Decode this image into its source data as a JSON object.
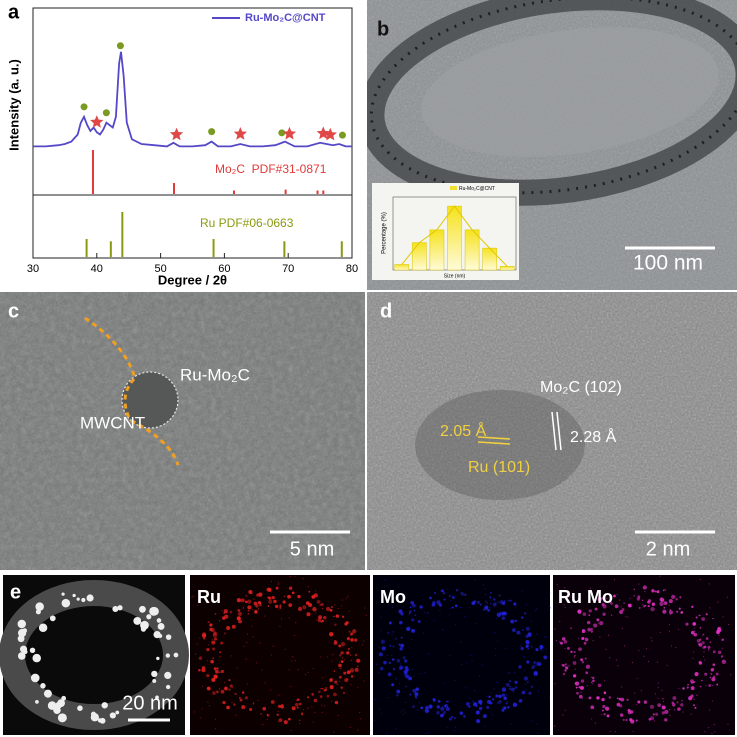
{
  "chart_data": [
    {
      "type": "line",
      "label": "a",
      "xlabel": "Degree / 2θ",
      "ylabel": "Intensity (a. u.)",
      "xlim": [
        30,
        80
      ],
      "xticks": [
        30,
        40,
        50,
        60,
        70,
        80
      ],
      "ylim": [
        0,
        110
      ],
      "legend": "upper right",
      "x": [
        30,
        32,
        34,
        35,
        36,
        37,
        37.5,
        38,
        38.5,
        39,
        39.5,
        40,
        40.5,
        41,
        41.5,
        42,
        42.5,
        43,
        43.5,
        43.8,
        44.2,
        44.7,
        45.5,
        47,
        49,
        51,
        52,
        53,
        55,
        57,
        58,
        59,
        61,
        62.5,
        64,
        66,
        68,
        69.5,
        71,
        73,
        75,
        76,
        77,
        78,
        79,
        80
      ],
      "series": [
        {
          "name": "Ru-Mo₂C@CNT",
          "color": "#5548c8",
          "values": [
            20,
            20,
            21,
            22,
            24,
            30,
            40,
            45,
            38,
            33,
            36,
            32,
            30,
            34,
            40,
            38,
            36,
            45,
            90,
            100,
            80,
            40,
            26,
            22,
            21,
            20,
            23,
            20,
            20,
            21,
            24,
            20,
            20,
            22,
            20,
            20,
            21,
            24,
            20,
            20,
            23,
            22,
            21,
            22,
            20,
            20
          ]
        }
      ],
      "markers": [
        {
          "shape": "circle",
          "color": "#7a9a20",
          "x": [
            38,
            41.5,
            43.7,
            58,
            69,
            78.5
          ]
        },
        {
          "shape": "star",
          "color": "#e04848",
          "x": [
            40,
            52.5,
            62.5,
            70.2,
            75.5,
            76.6
          ]
        }
      ],
      "references": [
        {
          "name": "Mo₂C  PDF#31-0871",
          "color": "#e03a3a",
          "x": [
            39.4,
            52.1,
            61.5,
            69.6,
            74.6,
            75.5
          ],
          "values": [
            100,
            25,
            8,
            10,
            8,
            8
          ]
        },
        {
          "name": "Ru PDF#06-0663",
          "color": "#8a9a10",
          "x": [
            38.4,
            42.2,
            44.0,
            58.3,
            69.4,
            78.4
          ],
          "values": [
            40,
            35,
            100,
            40,
            35,
            35
          ]
        }
      ]
    },
    {
      "type": "bar",
      "xlabel": "Size (nm)",
      "ylabel": "Percentage (%)",
      "ylim": [
        0,
        40
      ],
      "categories": [
        null,
        null,
        null,
        null,
        null,
        null,
        null
      ],
      "series": [
        {
          "name": "Ru-Mo₂C@CNT",
          "color": "#f2e030",
          "values": [
            3,
            15,
            22,
            35,
            22,
            12,
            2
          ]
        }
      ]
    }
  ],
  "panels": {
    "b": {
      "label": "b",
      "scale": "100 nm"
    },
    "c": {
      "label": "c",
      "particle": "Ru-Mo₂C",
      "tube": "MWCNT",
      "scale": "5 nm"
    },
    "d": {
      "label": "d",
      "mo2c_plane": "Mo₂C (102)",
      "ru_spacing": "2.05 Å",
      "mo2c_spacing": "2.28 Å",
      "ru_plane": "Ru (101)",
      "scale": "2 nm"
    },
    "e": {
      "label": "e",
      "scale": "20 nm",
      "maps": [
        "Ru",
        "Mo",
        "Ru Mo"
      ]
    }
  }
}
